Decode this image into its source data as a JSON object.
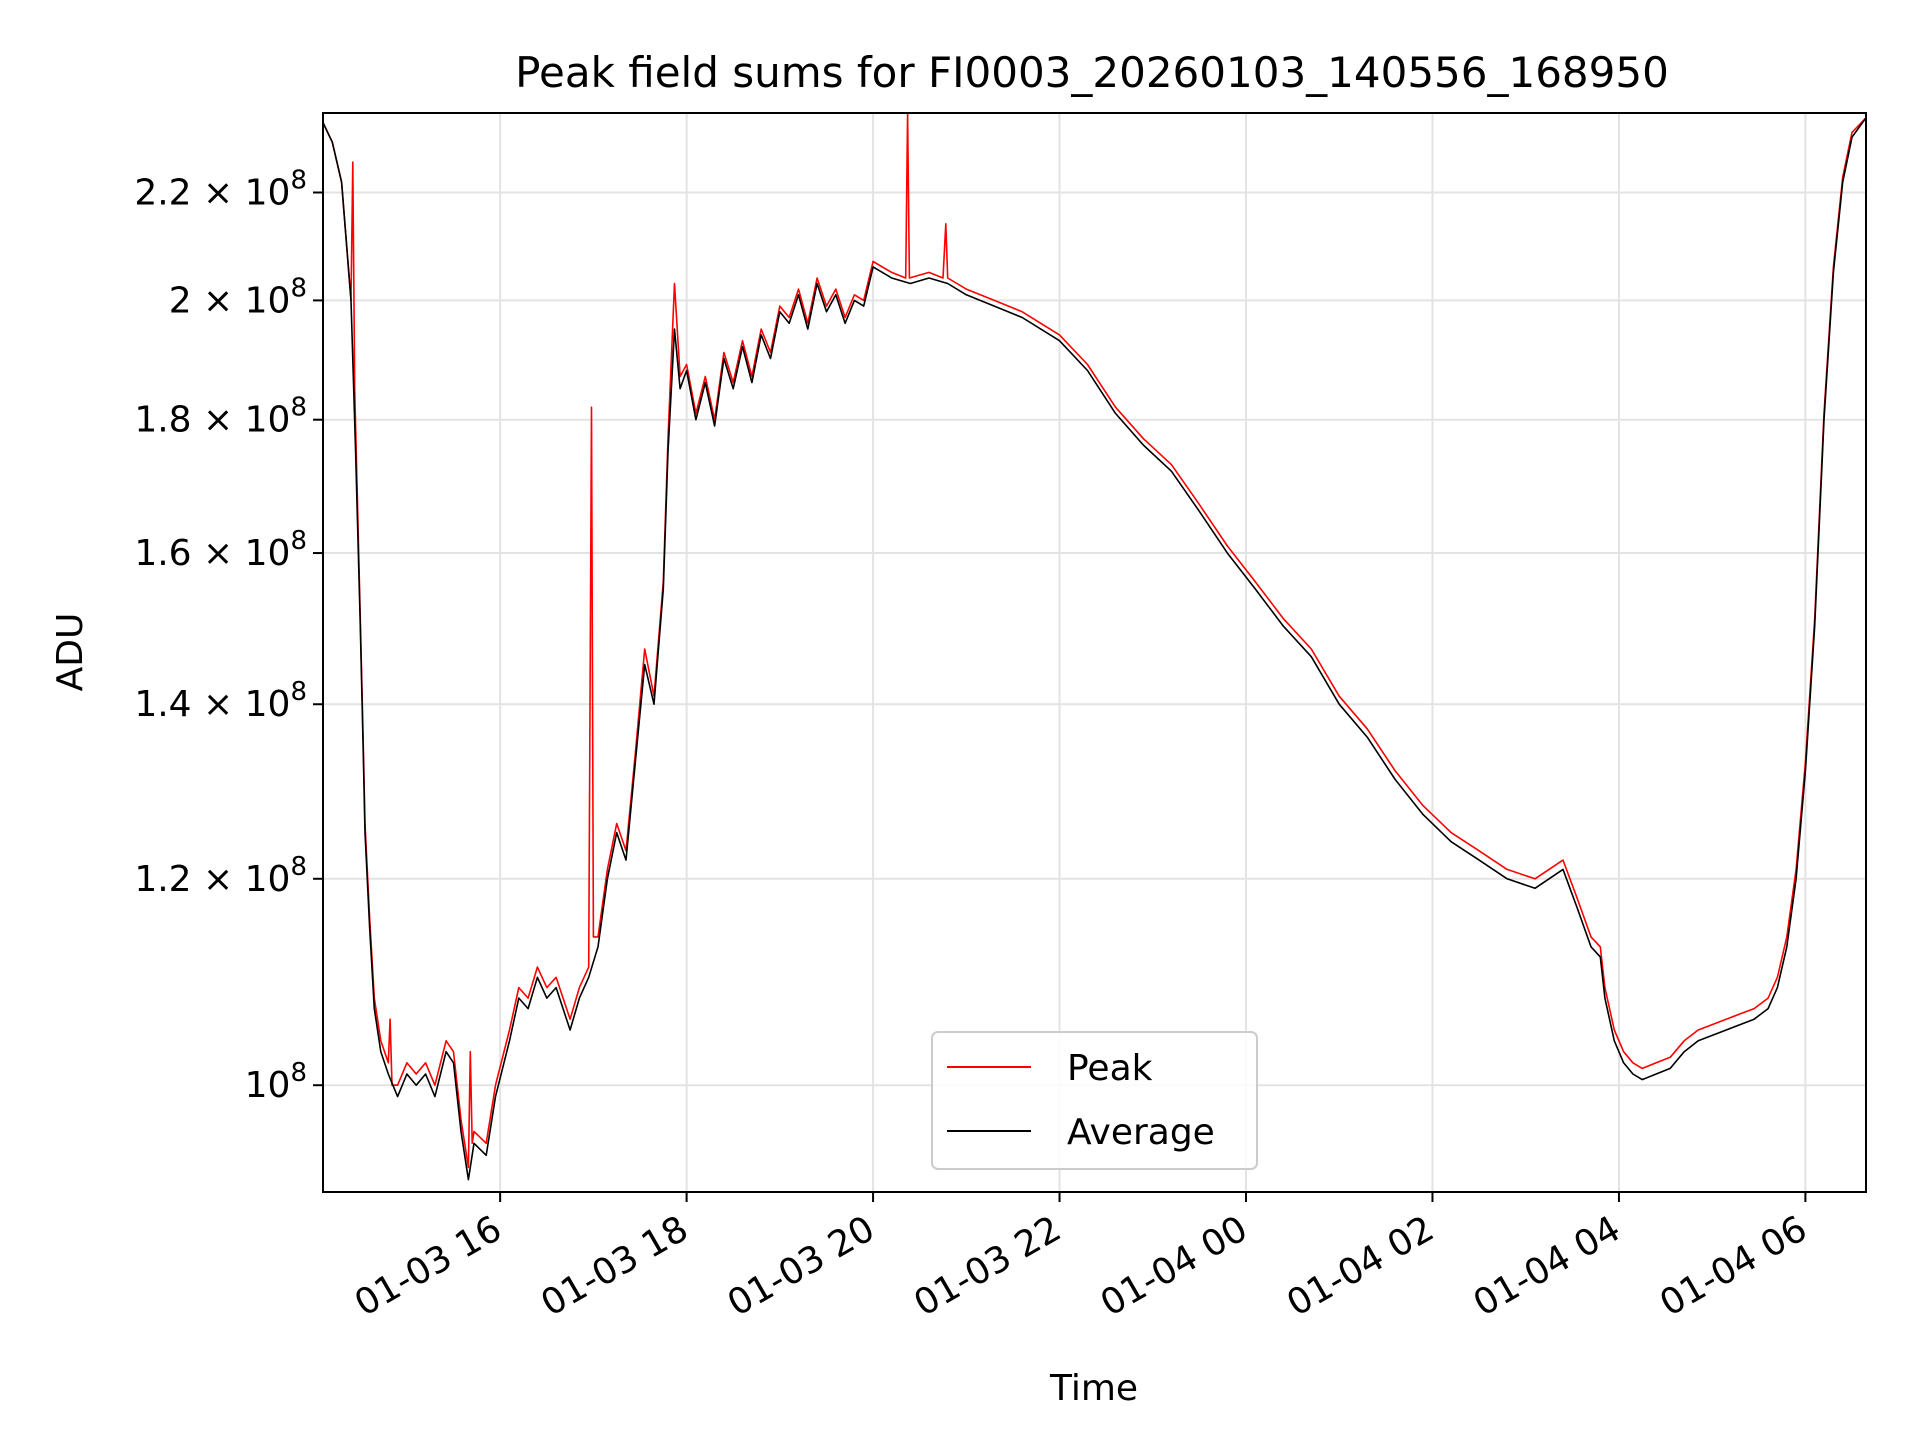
{
  "chart_data": {
    "type": "line",
    "title": "Peak field sums for FI0003_20260103_140556_168950",
    "xlabel": "Time",
    "ylabel": "ADU",
    "yscale": "log",
    "ylim": [
      91000000,
      236000000
    ],
    "xlim_hours": [
      14.1,
      30.65
    ],
    "grid": true,
    "legend_position": "lower center",
    "x_ticks": [
      {
        "hour": 16,
        "label": "01-03 16"
      },
      {
        "hour": 18,
        "label": "01-03 18"
      },
      {
        "hour": 20,
        "label": "01-03 20"
      },
      {
        "hour": 22,
        "label": "01-03 22"
      },
      {
        "hour": 24,
        "label": "01-04 00"
      },
      {
        "hour": 26,
        "label": "01-04 02"
      },
      {
        "hour": 28,
        "label": "01-04 04"
      },
      {
        "hour": 30,
        "label": "01-04 06"
      }
    ],
    "y_ticks": [
      {
        "value": 100000000,
        "mantissa": "",
        "exp": "8"
      },
      {
        "value": 120000000,
        "mantissa": "1.2 × 10",
        "exp": "8"
      },
      {
        "value": 140000000,
        "mantissa": "1.4 × 10",
        "exp": "8"
      },
      {
        "value": 160000000,
        "mantissa": "1.6 × 10",
        "exp": "8"
      },
      {
        "value": 180000000,
        "mantissa": "1.8 × 10",
        "exp": "8"
      },
      {
        "value": 200000000,
        "mantissa": "2 × 10",
        "exp": "8"
      },
      {
        "value": 220000000,
        "mantissa": "2.2 × 10",
        "exp": "8"
      }
    ],
    "series": [
      {
        "name": "Average",
        "color": "#000000",
        "points": [
          [
            14.1,
            234000000
          ],
          [
            14.2,
            230000000
          ],
          [
            14.3,
            222000000
          ],
          [
            14.4,
            200000000
          ],
          [
            14.45,
            175000000
          ],
          [
            14.5,
            150000000
          ],
          [
            14.53,
            135000000
          ],
          [
            14.55,
            125000000
          ],
          [
            14.6,
            115000000
          ],
          [
            14.65,
            107000000
          ],
          [
            14.72,
            103000000
          ],
          [
            14.8,
            101000000
          ],
          [
            14.9,
            99000000
          ],
          [
            15.0,
            101000000
          ],
          [
            15.1,
            100000000
          ],
          [
            15.2,
            101000000
          ],
          [
            15.3,
            99000000
          ],
          [
            15.42,
            103000000
          ],
          [
            15.5,
            102000000
          ],
          [
            15.58,
            96000000
          ],
          [
            15.66,
            92000000
          ],
          [
            15.72,
            95000000
          ],
          [
            15.85,
            94000000
          ],
          [
            15.95,
            99000000
          ],
          [
            16.1,
            104000000
          ],
          [
            16.2,
            108000000
          ],
          [
            16.3,
            107000000
          ],
          [
            16.4,
            110000000
          ],
          [
            16.5,
            108000000
          ],
          [
            16.6,
            109000000
          ],
          [
            16.75,
            105000000
          ],
          [
            16.85,
            108000000
          ],
          [
            16.95,
            110000000
          ],
          [
            17.05,
            113000000
          ],
          [
            17.15,
            120000000
          ],
          [
            17.25,
            125000000
          ],
          [
            17.35,
            122000000
          ],
          [
            17.45,
            133000000
          ],
          [
            17.55,
            145000000
          ],
          [
            17.65,
            140000000
          ],
          [
            17.75,
            155000000
          ],
          [
            17.8,
            175000000
          ],
          [
            17.87,
            195000000
          ],
          [
            17.93,
            185000000
          ],
          [
            18.0,
            188000000
          ],
          [
            18.1,
            180000000
          ],
          [
            18.2,
            186000000
          ],
          [
            18.3,
            179000000
          ],
          [
            18.4,
            190000000
          ],
          [
            18.5,
            185000000
          ],
          [
            18.6,
            192000000
          ],
          [
            18.7,
            186000000
          ],
          [
            18.8,
            194000000
          ],
          [
            18.9,
            190000000
          ],
          [
            19.0,
            198000000
          ],
          [
            19.1,
            196000000
          ],
          [
            19.2,
            201000000
          ],
          [
            19.3,
            195000000
          ],
          [
            19.4,
            203000000
          ],
          [
            19.5,
            198000000
          ],
          [
            19.6,
            201000000
          ],
          [
            19.7,
            196000000
          ],
          [
            19.8,
            200000000
          ],
          [
            19.9,
            199000000
          ],
          [
            20.0,
            206000000
          ],
          [
            20.2,
            204000000
          ],
          [
            20.4,
            203000000
          ],
          [
            20.6,
            204000000
          ],
          [
            20.8,
            203000000
          ],
          [
            21.0,
            201000000
          ],
          [
            21.3,
            199000000
          ],
          [
            21.6,
            197000000
          ],
          [
            22.0,
            193000000
          ],
          [
            22.3,
            188000000
          ],
          [
            22.6,
            181000000
          ],
          [
            22.9,
            176000000
          ],
          [
            23.2,
            172000000
          ],
          [
            23.5,
            166000000
          ],
          [
            23.8,
            160000000
          ],
          [
            24.1,
            155000000
          ],
          [
            24.4,
            150000000
          ],
          [
            24.7,
            146000000
          ],
          [
            25.0,
            140000000
          ],
          [
            25.3,
            136000000
          ],
          [
            25.6,
            131000000
          ],
          [
            25.9,
            127000000
          ],
          [
            26.2,
            124000000
          ],
          [
            26.5,
            122000000
          ],
          [
            26.8,
            120000000
          ],
          [
            27.1,
            119000000
          ],
          [
            27.4,
            121000000
          ],
          [
            27.55,
            117000000
          ],
          [
            27.7,
            113000000
          ],
          [
            27.8,
            112000000
          ],
          [
            27.85,
            108000000
          ],
          [
            27.95,
            104000000
          ],
          [
            28.05,
            102000000
          ],
          [
            28.15,
            101000000
          ],
          [
            28.25,
            100500000
          ],
          [
            28.4,
            101000000
          ],
          [
            28.55,
            101500000
          ],
          [
            28.7,
            103000000
          ],
          [
            28.85,
            104000000
          ],
          [
            29.0,
            104500000
          ],
          [
            29.15,
            105000000
          ],
          [
            29.3,
            105500000
          ],
          [
            29.45,
            106000000
          ],
          [
            29.6,
            107000000
          ],
          [
            29.7,
            109000000
          ],
          [
            29.8,
            113000000
          ],
          [
            29.9,
            120000000
          ],
          [
            30.0,
            132000000
          ],
          [
            30.1,
            150000000
          ],
          [
            30.2,
            180000000
          ],
          [
            30.3,
            205000000
          ],
          [
            30.4,
            222000000
          ],
          [
            30.5,
            231000000
          ],
          [
            30.65,
            235000000
          ]
        ]
      },
      {
        "name": "Peak",
        "color": "#ff0000",
        "points": [
          [
            14.1,
            234000000
          ],
          [
            14.2,
            230000000
          ],
          [
            14.3,
            222000000
          ],
          [
            14.4,
            200000000
          ],
          [
            14.42,
            226000000
          ],
          [
            14.44,
            185000000
          ],
          [
            14.5,
            151000000
          ],
          [
            14.53,
            136000000
          ],
          [
            14.55,
            126000000
          ],
          [
            14.6,
            116000000
          ],
          [
            14.65,
            108000000
          ],
          [
            14.72,
            104000000
          ],
          [
            14.8,
            102000000
          ],
          [
            14.82,
            106000000
          ],
          [
            14.84,
            100000000
          ],
          [
            14.9,
            100000000
          ],
          [
            15.0,
            102000000
          ],
          [
            15.1,
            101000000
          ],
          [
            15.2,
            102000000
          ],
          [
            15.3,
            100000000
          ],
          [
            15.42,
            104000000
          ],
          [
            15.5,
            103000000
          ],
          [
            15.58,
            97000000
          ],
          [
            15.66,
            93000000
          ],
          [
            15.68,
            103000000
          ],
          [
            15.7,
            95000000
          ],
          [
            15.72,
            96000000
          ],
          [
            15.85,
            95000000
          ],
          [
            15.95,
            100000000
          ],
          [
            16.1,
            105000000
          ],
          [
            16.2,
            109000000
          ],
          [
            16.3,
            108000000
          ],
          [
            16.4,
            111000000
          ],
          [
            16.5,
            109000000
          ],
          [
            16.6,
            110000000
          ],
          [
            16.75,
            106000000
          ],
          [
            16.85,
            109000000
          ],
          [
            16.95,
            111000000
          ],
          [
            16.98,
            182000000
          ],
          [
            17.0,
            114000000
          ],
          [
            17.05,
            114000000
          ],
          [
            17.15,
            121000000
          ],
          [
            17.25,
            126000000
          ],
          [
            17.35,
            123000000
          ],
          [
            17.45,
            134000000
          ],
          [
            17.55,
            147000000
          ],
          [
            17.65,
            141000000
          ],
          [
            17.75,
            156000000
          ],
          [
            17.8,
            177000000
          ],
          [
            17.87,
            203000000
          ],
          [
            17.93,
            187000000
          ],
          [
            18.0,
            189000000
          ],
          [
            18.1,
            181000000
          ],
          [
            18.2,
            187000000
          ],
          [
            18.3,
            180000000
          ],
          [
            18.4,
            191000000
          ],
          [
            18.5,
            186000000
          ],
          [
            18.6,
            193000000
          ],
          [
            18.7,
            187000000
          ],
          [
            18.8,
            195000000
          ],
          [
            18.9,
            191000000
          ],
          [
            19.0,
            199000000
          ],
          [
            19.1,
            197000000
          ],
          [
            19.2,
            202000000
          ],
          [
            19.3,
            196000000
          ],
          [
            19.4,
            204000000
          ],
          [
            19.5,
            199000000
          ],
          [
            19.6,
            202000000
          ],
          [
            19.7,
            197000000
          ],
          [
            19.8,
            201000000
          ],
          [
            19.9,
            200000000
          ],
          [
            20.0,
            207000000
          ],
          [
            20.2,
            205000000
          ],
          [
            20.35,
            204000000
          ],
          [
            20.37,
            236000000
          ],
          [
            20.39,
            204000000
          ],
          [
            20.6,
            205000000
          ],
          [
            20.75,
            204000000
          ],
          [
            20.78,
            214000000
          ],
          [
            20.8,
            204000000
          ],
          [
            21.0,
            202000000
          ],
          [
            21.3,
            200000000
          ],
          [
            21.6,
            198000000
          ],
          [
            22.0,
            194000000
          ],
          [
            22.3,
            189000000
          ],
          [
            22.6,
            182000000
          ],
          [
            22.9,
            177000000
          ],
          [
            23.2,
            173000000
          ],
          [
            23.5,
            167000000
          ],
          [
            23.8,
            161000000
          ],
          [
            24.1,
            156000000
          ],
          [
            24.4,
            151000000
          ],
          [
            24.7,
            147000000
          ],
          [
            25.0,
            141000000
          ],
          [
            25.3,
            137000000
          ],
          [
            25.6,
            132000000
          ],
          [
            25.9,
            128000000
          ],
          [
            26.2,
            125000000
          ],
          [
            26.5,
            123000000
          ],
          [
            26.8,
            121000000
          ],
          [
            27.1,
            120000000
          ],
          [
            27.4,
            122000000
          ],
          [
            27.55,
            118000000
          ],
          [
            27.7,
            114000000
          ],
          [
            27.8,
            113000000
          ],
          [
            27.85,
            109000000
          ],
          [
            27.95,
            105000000
          ],
          [
            28.05,
            103000000
          ],
          [
            28.15,
            102000000
          ],
          [
            28.25,
            101500000
          ],
          [
            28.4,
            102000000
          ],
          [
            28.55,
            102500000
          ],
          [
            28.7,
            104000000
          ],
          [
            28.85,
            105000000
          ],
          [
            29.0,
            105500000
          ],
          [
            29.15,
            106000000
          ],
          [
            29.3,
            106500000
          ],
          [
            29.45,
            107000000
          ],
          [
            29.6,
            108000000
          ],
          [
            29.7,
            110000000
          ],
          [
            29.8,
            114000000
          ],
          [
            29.9,
            121000000
          ],
          [
            30.0,
            133000000
          ],
          [
            30.1,
            151000000
          ],
          [
            30.2,
            181000000
          ],
          [
            30.3,
            206000000
          ],
          [
            30.4,
            223000000
          ],
          [
            30.5,
            232000000
          ],
          [
            30.65,
            235000000
          ]
        ]
      }
    ]
  }
}
